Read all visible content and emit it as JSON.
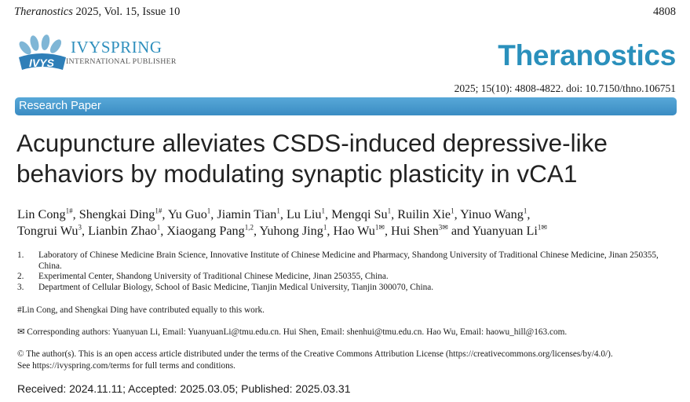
{
  "header": {
    "journal_italic": "Theranostics",
    "issue": "2025, Vol. 15, Issue 10",
    "page_number": "4808"
  },
  "publisher": {
    "logo_text": "IVYS",
    "name": "IVYSPRING",
    "subtitle": "INTERNATIONAL PUBLISHER"
  },
  "journal": {
    "title": "Theranostics",
    "citation": "2025; 15(10): 4808-4822. doi: 10.7150/thno.106751"
  },
  "paper_type": "Research Paper",
  "title_lines": [
    "Acupuncture alleviates CSDS-induced depressive-like",
    "behaviors by modulating synaptic plasticity in vCA1"
  ],
  "authors": [
    {
      "name": "Lin Cong",
      "sup": "1#"
    },
    {
      "name": "Shengkai Ding",
      "sup": "1#"
    },
    {
      "name": "Yu Guo",
      "sup": "1"
    },
    {
      "name": "Jiamin Tian",
      "sup": "1"
    },
    {
      "name": "Lu Liu",
      "sup": "1"
    },
    {
      "name": "Mengqi Su",
      "sup": "1"
    },
    {
      "name": "Ruilin Xie",
      "sup": "1"
    },
    {
      "name": "Yinuo Wang",
      "sup": "1"
    },
    {
      "name": "Tongrui Wu",
      "sup": "3"
    },
    {
      "name": "Lianbin Zhao",
      "sup": "1"
    },
    {
      "name": "Xiaogang Pang",
      "sup": "1,2"
    },
    {
      "name": "Yuhong Jing",
      "sup": "1"
    },
    {
      "name": "Hao Wu",
      "sup": "1✉"
    },
    {
      "name": "Hui Shen",
      "sup": "3✉"
    },
    {
      "name": "Yuanyuan Li",
      "sup": "1✉"
    }
  ],
  "author_and": "and",
  "affiliations": [
    {
      "num": "1.",
      "text": "Laboratory of Chinese Medicine Brain Science, Innovative Institute of Chinese Medicine and Pharmacy, Shandong University of Traditional Chinese Medicine, Jinan 250355, China."
    },
    {
      "num": "2.",
      "text": "Experimental Center, Shandong University of Traditional Chinese Medicine, Jinan 250355, China."
    },
    {
      "num": "3.",
      "text": "Department of Cellular Biology, School of Basic Medicine, Tianjin Medical University, Tianjin 300070, China."
    }
  ],
  "equal_contribution": "#Lin Cong, and Shengkai Ding have contributed equally to this work.",
  "corresponding": "✉ Corresponding authors: Yuanyuan Li, Email: YuanyuanLi@tmu.edu.cn. Hui Shen, Email: shenhui@tmu.edu.cn. Hao Wu, Email: haowu_hill@163.com.",
  "license_lines": [
    "© The author(s). This is an open access article distributed under the terms of the Creative Commons Attribution License (https://creativecommons.org/licenses/by/4.0/).",
    "See https://ivyspring.com/terms for full terms and conditions."
  ],
  "dates": "Received: 2024.11.11; Accepted: 2025.03.05; Published: 2025.03.31",
  "colors": {
    "brand_blue": "#2a90bc",
    "bar_blue": "#4a9bd0"
  }
}
